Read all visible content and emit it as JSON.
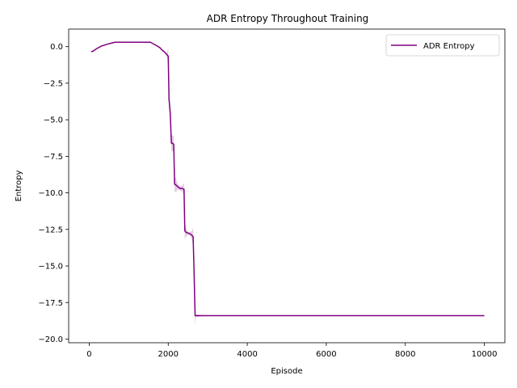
{
  "chart_data": {
    "type": "line",
    "title": "ADR Entropy Throughout Training",
    "xlabel": "Episode",
    "ylabel": "Entropy",
    "xlim": [
      -520,
      10520
    ],
    "ylim": [
      -20.25,
      1.2
    ],
    "x_ticks": [
      0,
      2000,
      4000,
      6000,
      8000,
      10000
    ],
    "x_tick_labels": [
      "0",
      "2000",
      "4000",
      "6000",
      "8000",
      "10000"
    ],
    "y_ticks": [
      0.0,
      -2.5,
      -5.0,
      -7.5,
      -10.0,
      -12.5,
      -15.0,
      -17.5,
      -20.0
    ],
    "y_tick_labels": [
      "0.0",
      "−2.5",
      "−5.0",
      "−7.5",
      "−10.0",
      "−12.5",
      "−15.0",
      "−17.5",
      "−20.0"
    ],
    "grid": false,
    "legend_position": "top-right",
    "colors": {
      "line": "#800080",
      "band": "#800080"
    },
    "series": [
      {
        "name": "ADR Entropy",
        "x": [
          50,
          100,
          200,
          300,
          400,
          500,
          650,
          800,
          1000,
          1200,
          1400,
          1550,
          1650,
          1750,
          1800,
          1850,
          1900,
          1950,
          2000,
          2020,
          2050,
          2080,
          2110,
          2140,
          2160,
          2190,
          2250,
          2300,
          2350,
          2400,
          2420,
          2450,
          2500,
          2550,
          2600,
          2630,
          2650,
          2680,
          2700,
          3000,
          4000,
          6000,
          8000,
          10000
        ],
        "y": [
          -0.35,
          -0.3,
          -0.12,
          0.03,
          0.12,
          0.2,
          0.3,
          0.3,
          0.3,
          0.3,
          0.3,
          0.3,
          0.15,
          0.0,
          -0.1,
          -0.25,
          -0.35,
          -0.5,
          -0.65,
          -3.6,
          -4.5,
          -6.6,
          -6.6,
          -6.7,
          -9.4,
          -9.45,
          -9.6,
          -9.7,
          -9.7,
          -9.75,
          -12.6,
          -12.7,
          -12.75,
          -12.8,
          -12.9,
          -13.0,
          -15.0,
          -18.4,
          -18.4,
          -18.4,
          -18.4,
          -18.4,
          -18.4,
          -18.4
        ],
        "band_half_width": [
          0,
          0,
          0,
          0,
          0,
          0,
          0,
          0,
          0,
          0,
          0,
          0,
          0,
          0,
          0,
          0,
          0,
          0,
          0.5,
          0.6,
          0.5,
          0.6,
          0.5,
          0.6,
          0.5,
          0.5,
          0.15,
          0.15,
          0.2,
          0.4,
          0.6,
          0.3,
          0.1,
          0.1,
          0.3,
          0.6,
          0.5,
          0.7,
          0.1,
          0,
          0,
          0,
          0,
          0
        ]
      }
    ]
  }
}
